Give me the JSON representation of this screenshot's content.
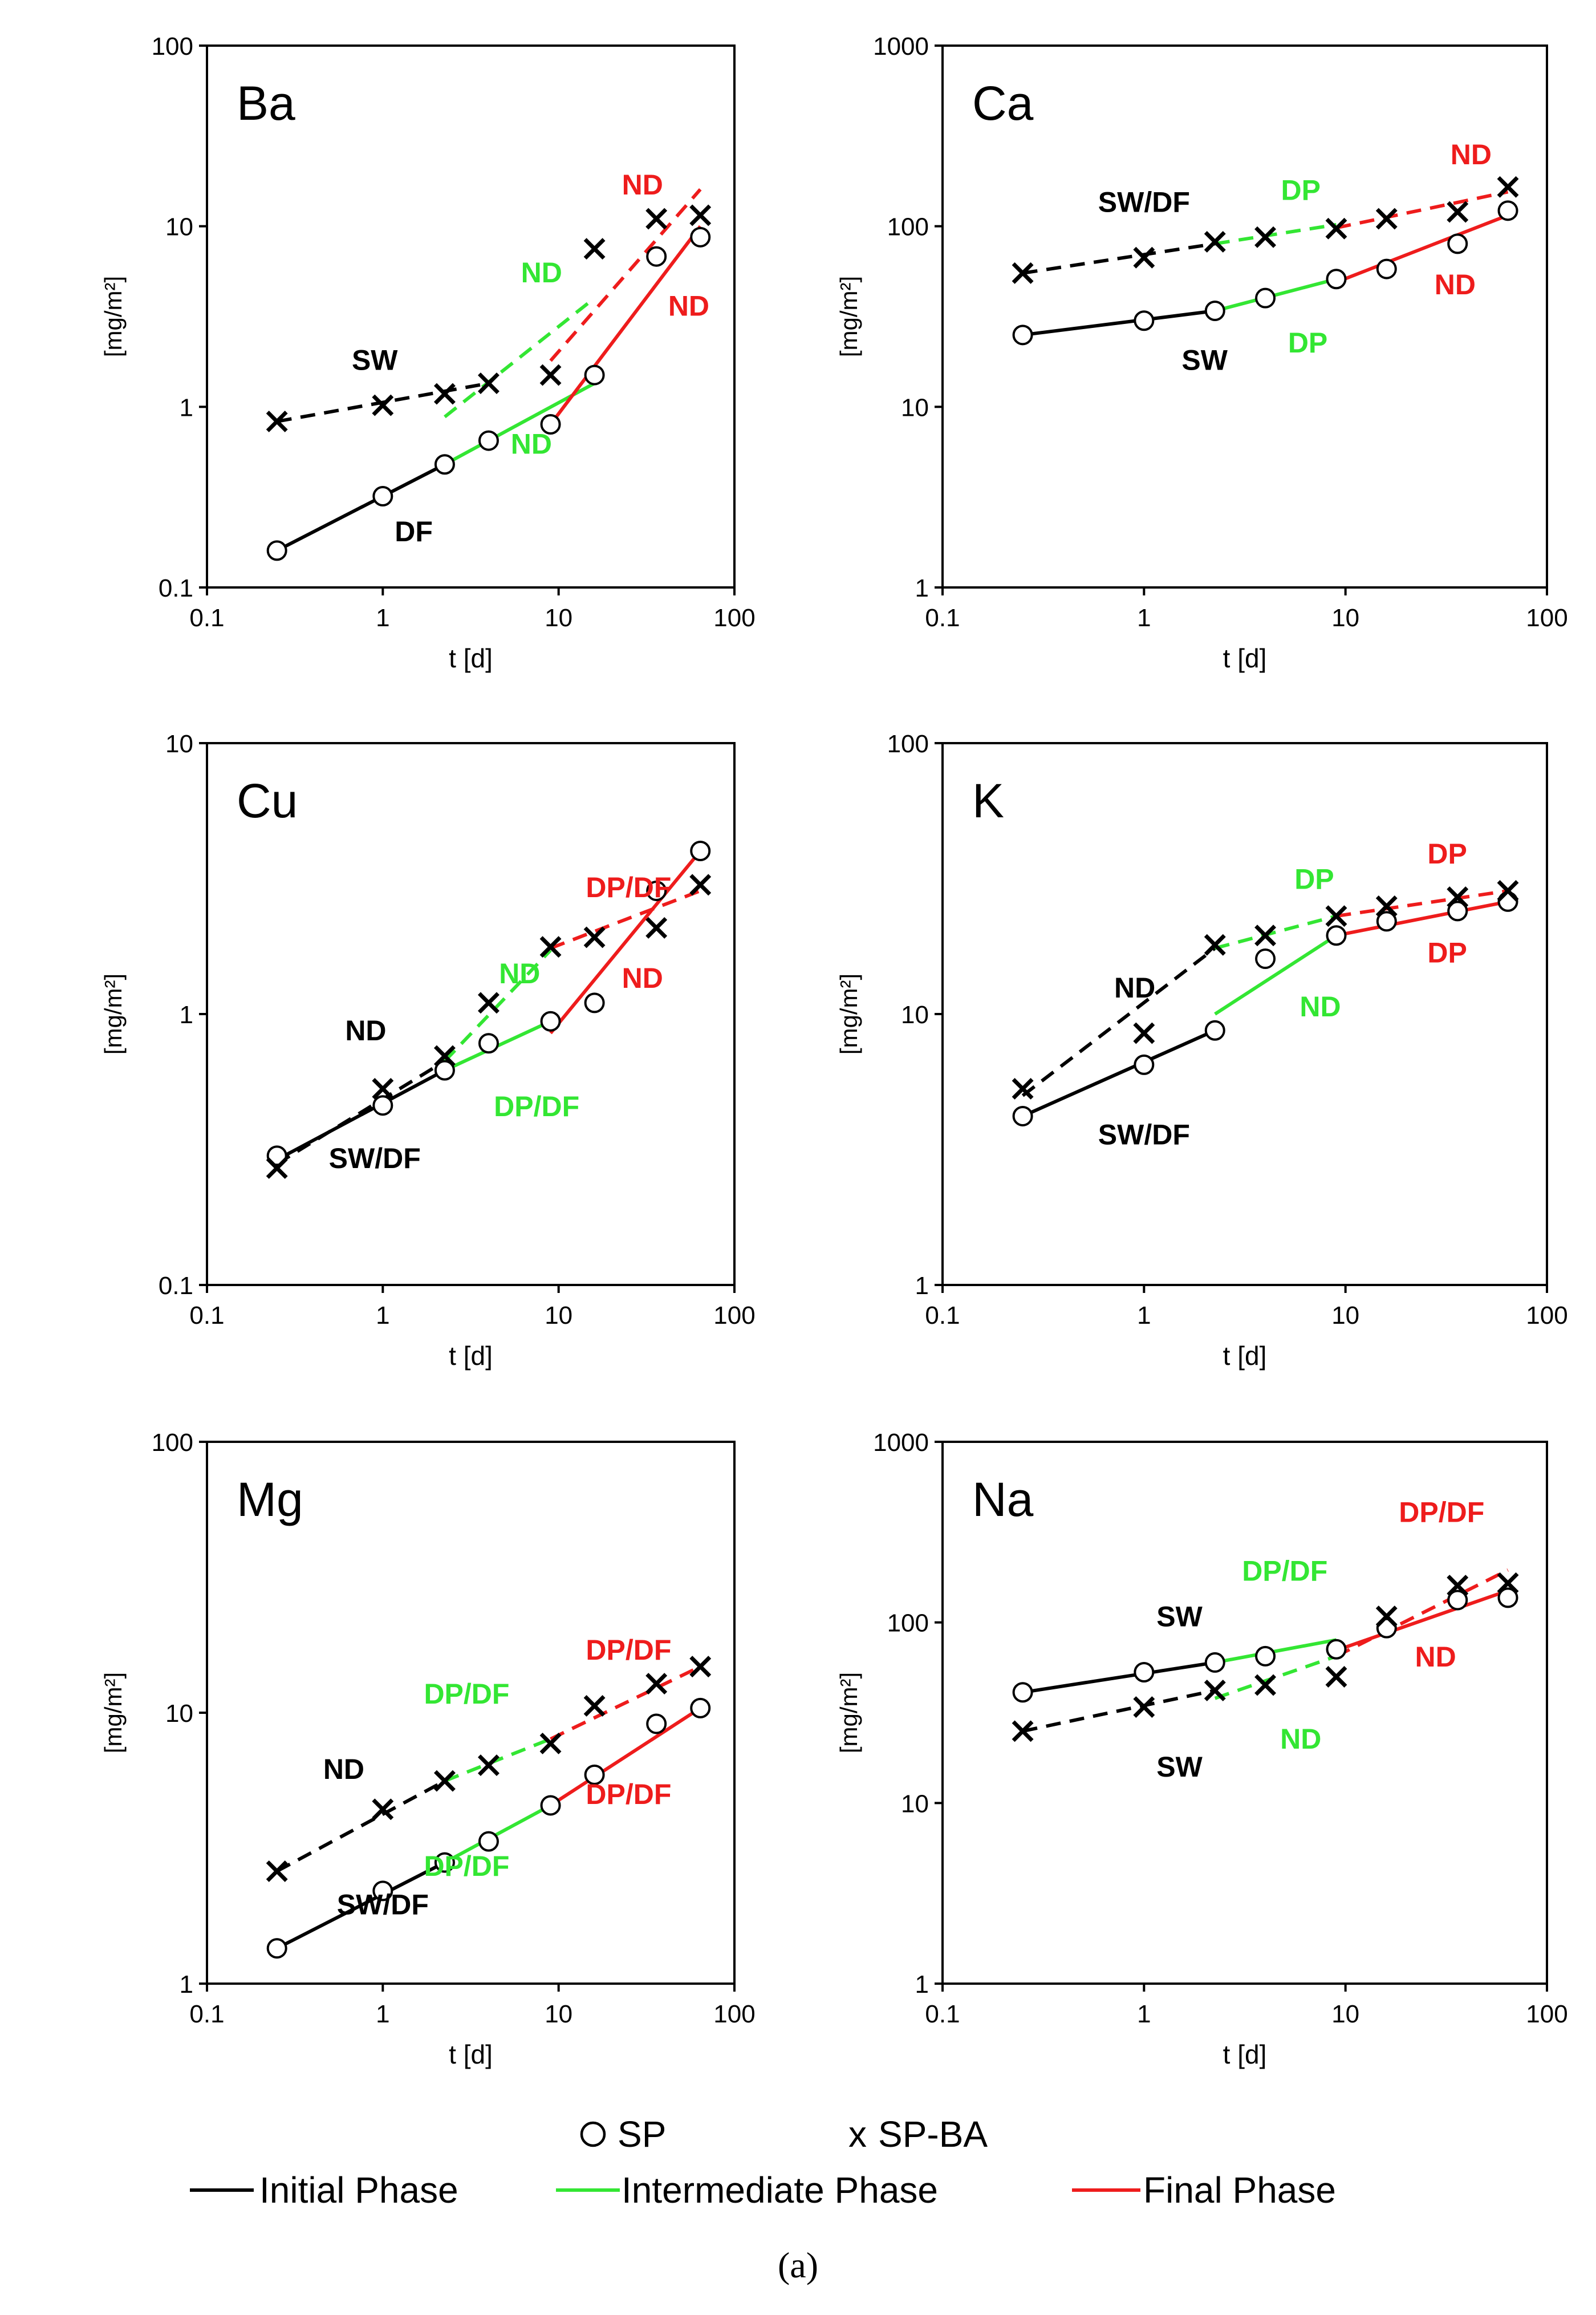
{
  "colors": {
    "initial": "#000000",
    "intermediate": "#33e633",
    "final": "#ee1c1c",
    "axis": "#000000",
    "background": "#ffffff"
  },
  "legend": {
    "sp_label": "SP",
    "spba_marker": "x",
    "spba_label": "SP-BA",
    "initial_label": "Initial Phase",
    "intermediate_label": "Intermediate Phase",
    "final_label": "Final Phase"
  },
  "caption": "(a)",
  "chart_data": [
    {
      "type": "scatter",
      "title": "Ba",
      "xlabel": "t [d]",
      "ylabel": "[mg/m²]",
      "xscale": "log",
      "yscale": "log",
      "xlim": [
        0.1,
        100
      ],
      "ylim": [
        0.1,
        100
      ],
      "xticks": [
        "0.1",
        "1",
        "10",
        "100"
      ],
      "yticks": [
        "0.1",
        "1",
        "10",
        "100"
      ],
      "series": [
        {
          "name": "SP",
          "marker": "circle",
          "x": [
            0.25,
            1,
            2.25,
            4,
            9,
            16,
            36,
            64
          ],
          "y": [
            0.16,
            0.32,
            0.48,
            0.65,
            0.8,
            1.5,
            6.8,
            8.7
          ]
        },
        {
          "name": "SP-BA",
          "marker": "x",
          "x": [
            0.25,
            1,
            2.25,
            4,
            9,
            16,
            36,
            64
          ],
          "y": [
            0.83,
            1.02,
            1.18,
            1.35,
            1.5,
            7.5,
            11,
            11.5
          ]
        }
      ],
      "fits": [
        {
          "series": "SP",
          "phase": "initial",
          "x": [
            0.25,
            2.25
          ],
          "y": [
            0.16,
            0.48
          ]
        },
        {
          "series": "SP",
          "phase": "intermediate",
          "x": [
            2.25,
            16
          ],
          "y": [
            0.48,
            1.35
          ]
        },
        {
          "series": "SP",
          "phase": "final",
          "x": [
            9,
            64
          ],
          "y": [
            0.8,
            10
          ]
        },
        {
          "series": "SP-BA",
          "phase": "initial",
          "x": [
            0.25,
            4
          ],
          "y": [
            0.83,
            1.35
          ]
        },
        {
          "series": "SP-BA",
          "phase": "intermediate",
          "x": [
            2.25,
            16
          ],
          "y": [
            0.88,
            4
          ]
        },
        {
          "series": "SP-BA",
          "phase": "final",
          "x": [
            9,
            64
          ],
          "y": [
            1.8,
            16
          ]
        }
      ],
      "annotations": [
        {
          "text": "SW",
          "color": "initial",
          "x": 0.9,
          "y": 1.6
        },
        {
          "text": "DF",
          "color": "initial",
          "x": 1.5,
          "y": 0.18
        },
        {
          "text": "ND",
          "color": "intermediate",
          "x": 8.0,
          "y": 4.9
        },
        {
          "text": "ND",
          "color": "intermediate",
          "x": 7.0,
          "y": 0.55
        },
        {
          "text": "ND",
          "color": "final",
          "x": 30,
          "y": 15
        },
        {
          "text": "ND",
          "color": "final",
          "x": 55,
          "y": 3.2
        }
      ]
    },
    {
      "type": "scatter",
      "title": "Ca",
      "xlabel": "t [d]",
      "ylabel": "[mg/m²]",
      "xscale": "log",
      "yscale": "log",
      "xlim": [
        0.1,
        100
      ],
      "ylim": [
        1,
        1000
      ],
      "xticks": [
        "0.1",
        "1",
        "10",
        "100"
      ],
      "yticks": [
        "1",
        "10",
        "100",
        "1000"
      ],
      "series": [
        {
          "name": "SP",
          "marker": "circle",
          "x": [
            0.25,
            1,
            2.25,
            4,
            9,
            16,
            36,
            64
          ],
          "y": [
            25,
            30,
            34,
            40,
            51,
            58,
            80,
            122
          ]
        },
        {
          "name": "SP-BA",
          "marker": "x",
          "x": [
            0.25,
            1,
            2.25,
            4,
            9,
            16,
            36,
            64
          ],
          "y": [
            55,
            67,
            82,
            87,
            97,
            110,
            120,
            165
          ]
        }
      ],
      "fits": [
        {
          "series": "SP",
          "phase": "initial",
          "x": [
            0.25,
            2.25
          ],
          "y": [
            25,
            34
          ]
        },
        {
          "series": "SP",
          "phase": "intermediate",
          "x": [
            2.25,
            9
          ],
          "y": [
            34,
            51
          ]
        },
        {
          "series": "SP",
          "phase": "final",
          "x": [
            9,
            64
          ],
          "y": [
            49,
            115
          ]
        },
        {
          "series": "SP-BA",
          "phase": "initial",
          "x": [
            0.25,
            2.25
          ],
          "y": [
            55,
            80
          ]
        },
        {
          "series": "SP-BA",
          "phase": "intermediate",
          "x": [
            2.25,
            9
          ],
          "y": [
            80,
            102
          ]
        },
        {
          "series": "SP-BA",
          "phase": "final",
          "x": [
            9,
            64
          ],
          "y": [
            98,
            155
          ]
        }
      ],
      "annotations": [
        {
          "text": "SW/DF",
          "color": "initial",
          "x": 1.0,
          "y": 120
        },
        {
          "text": "SW",
          "color": "initial",
          "x": 2.0,
          "y": 16
        },
        {
          "text": "DP",
          "color": "intermediate",
          "x": 6.0,
          "y": 140
        },
        {
          "text": "DP",
          "color": "intermediate",
          "x": 6.5,
          "y": 20
        },
        {
          "text": "ND",
          "color": "final",
          "x": 42,
          "y": 220
        },
        {
          "text": "ND",
          "color": "final",
          "x": 35,
          "y": 42
        }
      ]
    },
    {
      "type": "scatter",
      "title": "Cu",
      "xlabel": "t [d]",
      "ylabel": "[mg/m²]",
      "xscale": "log",
      "yscale": "log",
      "xlim": [
        0.1,
        100
      ],
      "ylim": [
        0.1,
        10
      ],
      "xticks": [
        "0.1",
        "1",
        "10",
        "100"
      ],
      "yticks": [
        "0.1",
        "1",
        "10"
      ],
      "series": [
        {
          "name": "SP",
          "marker": "circle",
          "x": [
            0.25,
            1,
            2.25,
            4,
            9,
            16,
            36,
            64
          ],
          "y": [
            0.3,
            0.46,
            0.62,
            0.78,
            0.94,
            1.1,
            2.85,
            4.0
          ]
        },
        {
          "name": "SP-BA",
          "marker": "x",
          "x": [
            0.25,
            1,
            2.25,
            4,
            9,
            16,
            36,
            64
          ],
          "y": [
            0.27,
            0.53,
            0.7,
            1.1,
            1.77,
            1.92,
            2.08,
            3.0
          ]
        }
      ],
      "fits": [
        {
          "series": "SP",
          "phase": "initial",
          "x": [
            0.25,
            2.25
          ],
          "y": [
            0.29,
            0.62
          ]
        },
        {
          "series": "SP",
          "phase": "intermediate",
          "x": [
            2.25,
            9
          ],
          "y": [
            0.62,
            0.94
          ]
        },
        {
          "series": "SP",
          "phase": "final",
          "x": [
            9,
            64
          ],
          "y": [
            0.85,
            4.0
          ]
        },
        {
          "series": "SP-BA",
          "phase": "initial",
          "x": [
            0.25,
            2.25
          ],
          "y": [
            0.28,
            0.67
          ]
        },
        {
          "series": "SP-BA",
          "phase": "intermediate",
          "x": [
            2.25,
            9
          ],
          "y": [
            0.67,
            1.72
          ]
        },
        {
          "series": "SP-BA",
          "phase": "final",
          "x": [
            9,
            64
          ],
          "y": [
            1.75,
            2.85
          ]
        }
      ],
      "annotations": [
        {
          "text": "ND",
          "color": "initial",
          "x": 0.8,
          "y": 0.8
        },
        {
          "text": "SW/DF",
          "color": "initial",
          "x": 0.9,
          "y": 0.27
        },
        {
          "text": "ND",
          "color": "intermediate",
          "x": 6.0,
          "y": 1.3
        },
        {
          "text": "DP/DF",
          "color": "intermediate",
          "x": 7.5,
          "y": 0.42
        },
        {
          "text": "DP/DF",
          "color": "final",
          "x": 25,
          "y": 2.7
        },
        {
          "text": "ND",
          "color": "final",
          "x": 30,
          "y": 1.25
        }
      ]
    },
    {
      "type": "scatter",
      "title": "K",
      "xlabel": "t [d]",
      "ylabel": "[mg/m²]",
      "xscale": "log",
      "yscale": "log",
      "xlim": [
        0.1,
        100
      ],
      "ylim": [
        1,
        100
      ],
      "xticks": [
        "0.1",
        "1",
        "10",
        "100"
      ],
      "yticks": [
        "1",
        "10",
        "100"
      ],
      "series": [
        {
          "name": "SP",
          "marker": "circle",
          "x": [
            0.25,
            1,
            2.25,
            4,
            9,
            16,
            36,
            64
          ],
          "y": [
            4.2,
            6.5,
            8.7,
            16,
            19.5,
            22,
            24,
            26
          ]
        },
        {
          "name": "SP-BA",
          "marker": "x",
          "x": [
            0.25,
            1,
            2.25,
            4,
            9,
            16,
            36,
            64
          ],
          "y": [
            5.3,
            8.5,
            18,
            19.5,
            23,
            25,
            27,
            28.5
          ]
        }
      ],
      "fits": [
        {
          "series": "SP",
          "phase": "initial",
          "x": [
            0.25,
            2.25
          ],
          "y": [
            4.2,
            8.7
          ]
        },
        {
          "series": "SP",
          "phase": "intermediate",
          "x": [
            2.25,
            9
          ],
          "y": [
            10,
            19.5
          ]
        },
        {
          "series": "SP",
          "phase": "final",
          "x": [
            9,
            64
          ],
          "y": [
            19.5,
            26
          ]
        },
        {
          "series": "SP-BA",
          "phase": "initial",
          "x": [
            0.25,
            2.25
          ],
          "y": [
            5.0,
            17.5
          ]
        },
        {
          "series": "SP-BA",
          "phase": "intermediate",
          "x": [
            2.25,
            9
          ],
          "y": [
            17.5,
            23
          ]
        },
        {
          "series": "SP-BA",
          "phase": "final",
          "x": [
            9,
            64
          ],
          "y": [
            23,
            28.5
          ]
        }
      ],
      "annotations": [
        {
          "text": "ND",
          "color": "initial",
          "x": 0.9,
          "y": 11.5
        },
        {
          "text": "SW/DF",
          "color": "initial",
          "x": 1.0,
          "y": 3.3
        },
        {
          "text": "DP",
          "color": "intermediate",
          "x": 7.0,
          "y": 29
        },
        {
          "text": "ND",
          "color": "intermediate",
          "x": 7.5,
          "y": 9.8
        },
        {
          "text": "DP",
          "color": "final",
          "x": 32,
          "y": 36
        },
        {
          "text": "DP",
          "color": "final",
          "x": 32,
          "y": 15.5
        }
      ]
    },
    {
      "type": "scatter",
      "title": "Mg",
      "xlabel": "t [d]",
      "ylabel": "[mg/m²]",
      "xscale": "log",
      "yscale": "log",
      "xlim": [
        0.1,
        100
      ],
      "ylim": [
        1,
        100
      ],
      "xticks": [
        "0.1",
        "1",
        "10",
        "100"
      ],
      "yticks": [
        "1",
        "10",
        "100"
      ],
      "series": [
        {
          "name": "SP",
          "marker": "circle",
          "x": [
            0.25,
            1,
            2.25,
            4,
            9,
            16,
            36,
            64
          ],
          "y": [
            1.35,
            2.2,
            2.8,
            3.35,
            4.55,
            5.9,
            9.1,
            10.4
          ]
        },
        {
          "name": "SP-BA",
          "marker": "x",
          "x": [
            0.25,
            1,
            2.25,
            4,
            9,
            16,
            36,
            64
          ],
          "y": [
            2.6,
            4.4,
            5.6,
            6.4,
            7.7,
            10.6,
            12.8,
            14.8
          ]
        }
      ],
      "fits": [
        {
          "series": "SP",
          "phase": "initial",
          "x": [
            0.25,
            2.25
          ],
          "y": [
            1.35,
            2.8
          ]
        },
        {
          "series": "SP",
          "phase": "intermediate",
          "x": [
            2.25,
            9
          ],
          "y": [
            2.8,
            4.55
          ]
        },
        {
          "series": "SP",
          "phase": "final",
          "x": [
            9,
            64
          ],
          "y": [
            4.55,
            10.4
          ]
        },
        {
          "series": "SP-BA",
          "phase": "initial",
          "x": [
            0.25,
            2.25
          ],
          "y": [
            2.6,
            5.6
          ]
        },
        {
          "series": "SP-BA",
          "phase": "intermediate",
          "x": [
            2.25,
            9
          ],
          "y": [
            5.6,
            8.0
          ]
        },
        {
          "series": "SP-BA",
          "phase": "final",
          "x": [
            9,
            64
          ],
          "y": [
            8.0,
            14.8
          ]
        }
      ],
      "annotations": [
        {
          "text": "ND",
          "color": "initial",
          "x": 0.6,
          "y": 5.7
        },
        {
          "text": "SW/DF",
          "color": "initial",
          "x": 1.0,
          "y": 1.8
        },
        {
          "text": "DP/DF",
          "color": "intermediate",
          "x": 3.0,
          "y": 10.8
        },
        {
          "text": "DP/DF",
          "color": "intermediate",
          "x": 3.0,
          "y": 2.5
        },
        {
          "text": "DP/DF",
          "color": "final",
          "x": 25,
          "y": 15.7
        },
        {
          "text": "DP/DF",
          "color": "final",
          "x": 25,
          "y": 4.6
        }
      ]
    },
    {
      "type": "scatter",
      "title": "Na",
      "xlabel": "t [d]",
      "ylabel": "[mg/m²]",
      "xscale": "log",
      "yscale": "log",
      "xlim": [
        0.1,
        100
      ],
      "ylim": [
        1,
        1000
      ],
      "xticks": [
        "0.1",
        "1",
        "10",
        "100"
      ],
      "yticks": [
        "1",
        "10",
        "100",
        "1000"
      ],
      "series": [
        {
          "name": "SP",
          "marker": "circle",
          "x": [
            0.25,
            1,
            2.25,
            4,
            9,
            16,
            36,
            64
          ],
          "y": [
            41,
            53,
            60,
            65,
            71,
            93,
            133,
            137
          ]
        },
        {
          "name": "SP-BA",
          "marker": "x",
          "x": [
            0.25,
            1,
            2.25,
            4,
            9,
            16,
            36,
            64
          ],
          "y": [
            25,
            34,
            42,
            45,
            50,
            108,
            160,
            165
          ]
        }
      ],
      "fits": [
        {
          "series": "SP",
          "phase": "initial",
          "x": [
            0.25,
            2.25
          ],
          "y": [
            41,
            60
          ]
        },
        {
          "series": "SP",
          "phase": "intermediate",
          "x": [
            2.25,
            9
          ],
          "y": [
            60,
            80
          ]
        },
        {
          "series": "SP",
          "phase": "final",
          "x": [
            9,
            64
          ],
          "y": [
            70,
            150
          ]
        },
        {
          "series": "SP-BA",
          "phase": "initial",
          "x": [
            0.25,
            2.25
          ],
          "y": [
            25,
            42
          ]
        },
        {
          "series": "SP-BA",
          "phase": "intermediate",
          "x": [
            2.25,
            9
          ],
          "y": [
            38,
            65
          ]
        },
        {
          "series": "SP-BA",
          "phase": "final",
          "x": [
            9,
            64
          ],
          "y": [
            65,
            195
          ]
        }
      ],
      "annotations": [
        {
          "text": "SW",
          "color": "initial",
          "x": 1.5,
          "y": 95
        },
        {
          "text": "SW",
          "color": "initial",
          "x": 1.5,
          "y": 14
        },
        {
          "text": "DP/DF",
          "color": "intermediate",
          "x": 5.0,
          "y": 170
        },
        {
          "text": "ND",
          "color": "intermediate",
          "x": 6.0,
          "y": 20
        },
        {
          "text": "DP/DF",
          "color": "final",
          "x": 30,
          "y": 360
        },
        {
          "text": "ND",
          "color": "final",
          "x": 28,
          "y": 57
        }
      ]
    }
  ]
}
